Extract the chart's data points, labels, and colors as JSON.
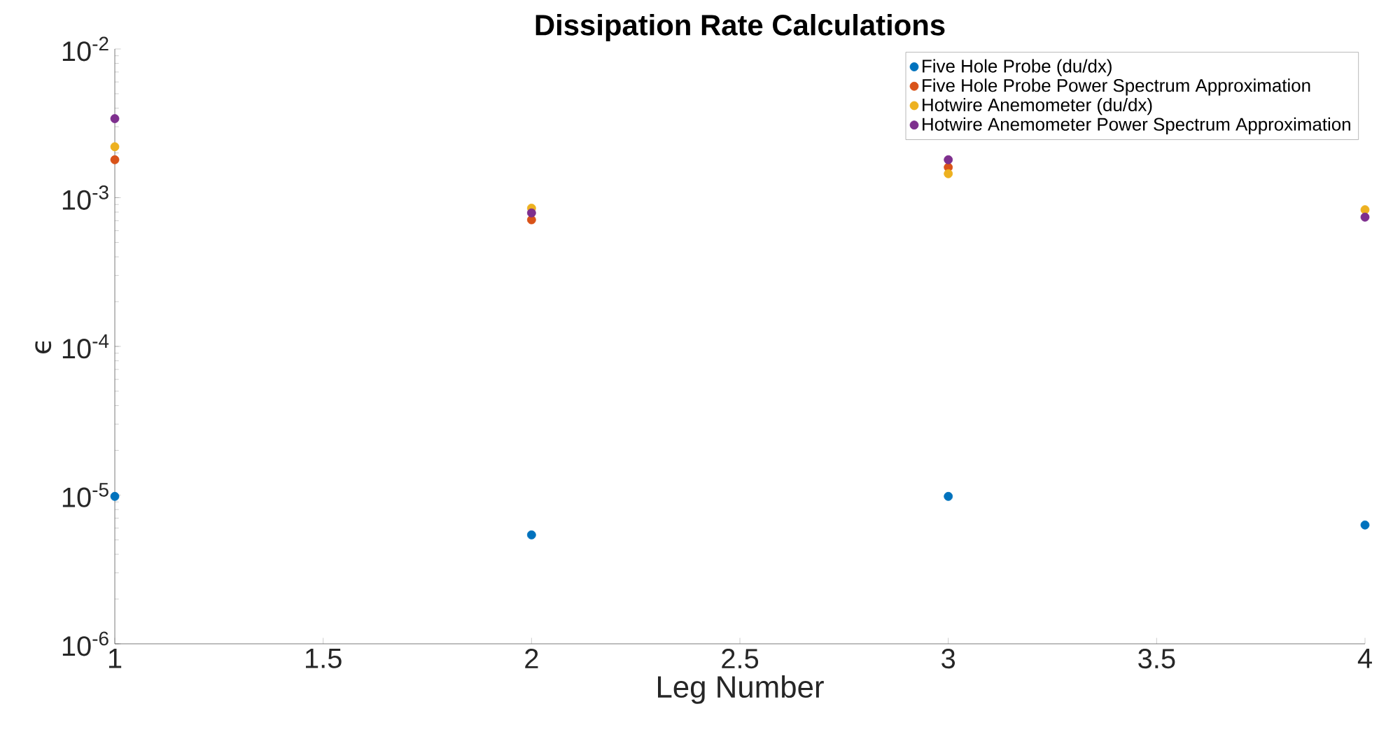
{
  "chart_data": {
    "type": "scatter",
    "title": "Dissipation Rate Calculations",
    "xlabel": "Leg Number",
    "ylabel": "ϵ",
    "x": [
      1,
      2,
      3,
      4
    ],
    "series": [
      {
        "name": "Five Hole Probe (du/dx)",
        "color": "#0072bd",
        "values": [
          9.8e-06,
          5.4e-06,
          9.8e-06,
          6.3e-06
        ]
      },
      {
        "name": "Five Hole Probe Power Spectrum Approximation",
        "color": "#d95319",
        "values": [
          0.0018,
          0.00071,
          0.0016,
          null
        ]
      },
      {
        "name": "Hotwire Anemometer (du/dx)",
        "color": "#edb120",
        "values": [
          0.0022,
          0.00085,
          0.00145,
          0.00083
        ]
      },
      {
        "name": "Hotwire Anemometer Power Spectrum Approximation",
        "color": "#7e2f8e",
        "values": [
          0.0034,
          0.00079,
          0.0018,
          0.00074
        ]
      }
    ],
    "xlim": [
      1,
      4
    ],
    "ylim": [
      1e-06,
      0.01
    ],
    "xticks": [
      1,
      1.5,
      2,
      2.5,
      3,
      3.5,
      4
    ],
    "yticks": [
      {
        "value": 1e-06,
        "label": "10$^{-6}$"
      },
      {
        "value": 1e-05,
        "label": "10$^{-5}$"
      },
      {
        "value": 0.0001,
        "label": "10$^{-4}$"
      },
      {
        "value": 0.001,
        "label": "10$^{-3}$"
      },
      {
        "value": 0.01,
        "label": "10$^{-2}$"
      }
    ],
    "log": "y",
    "grid": false,
    "legend": "top right",
    "marker": "circle"
  }
}
